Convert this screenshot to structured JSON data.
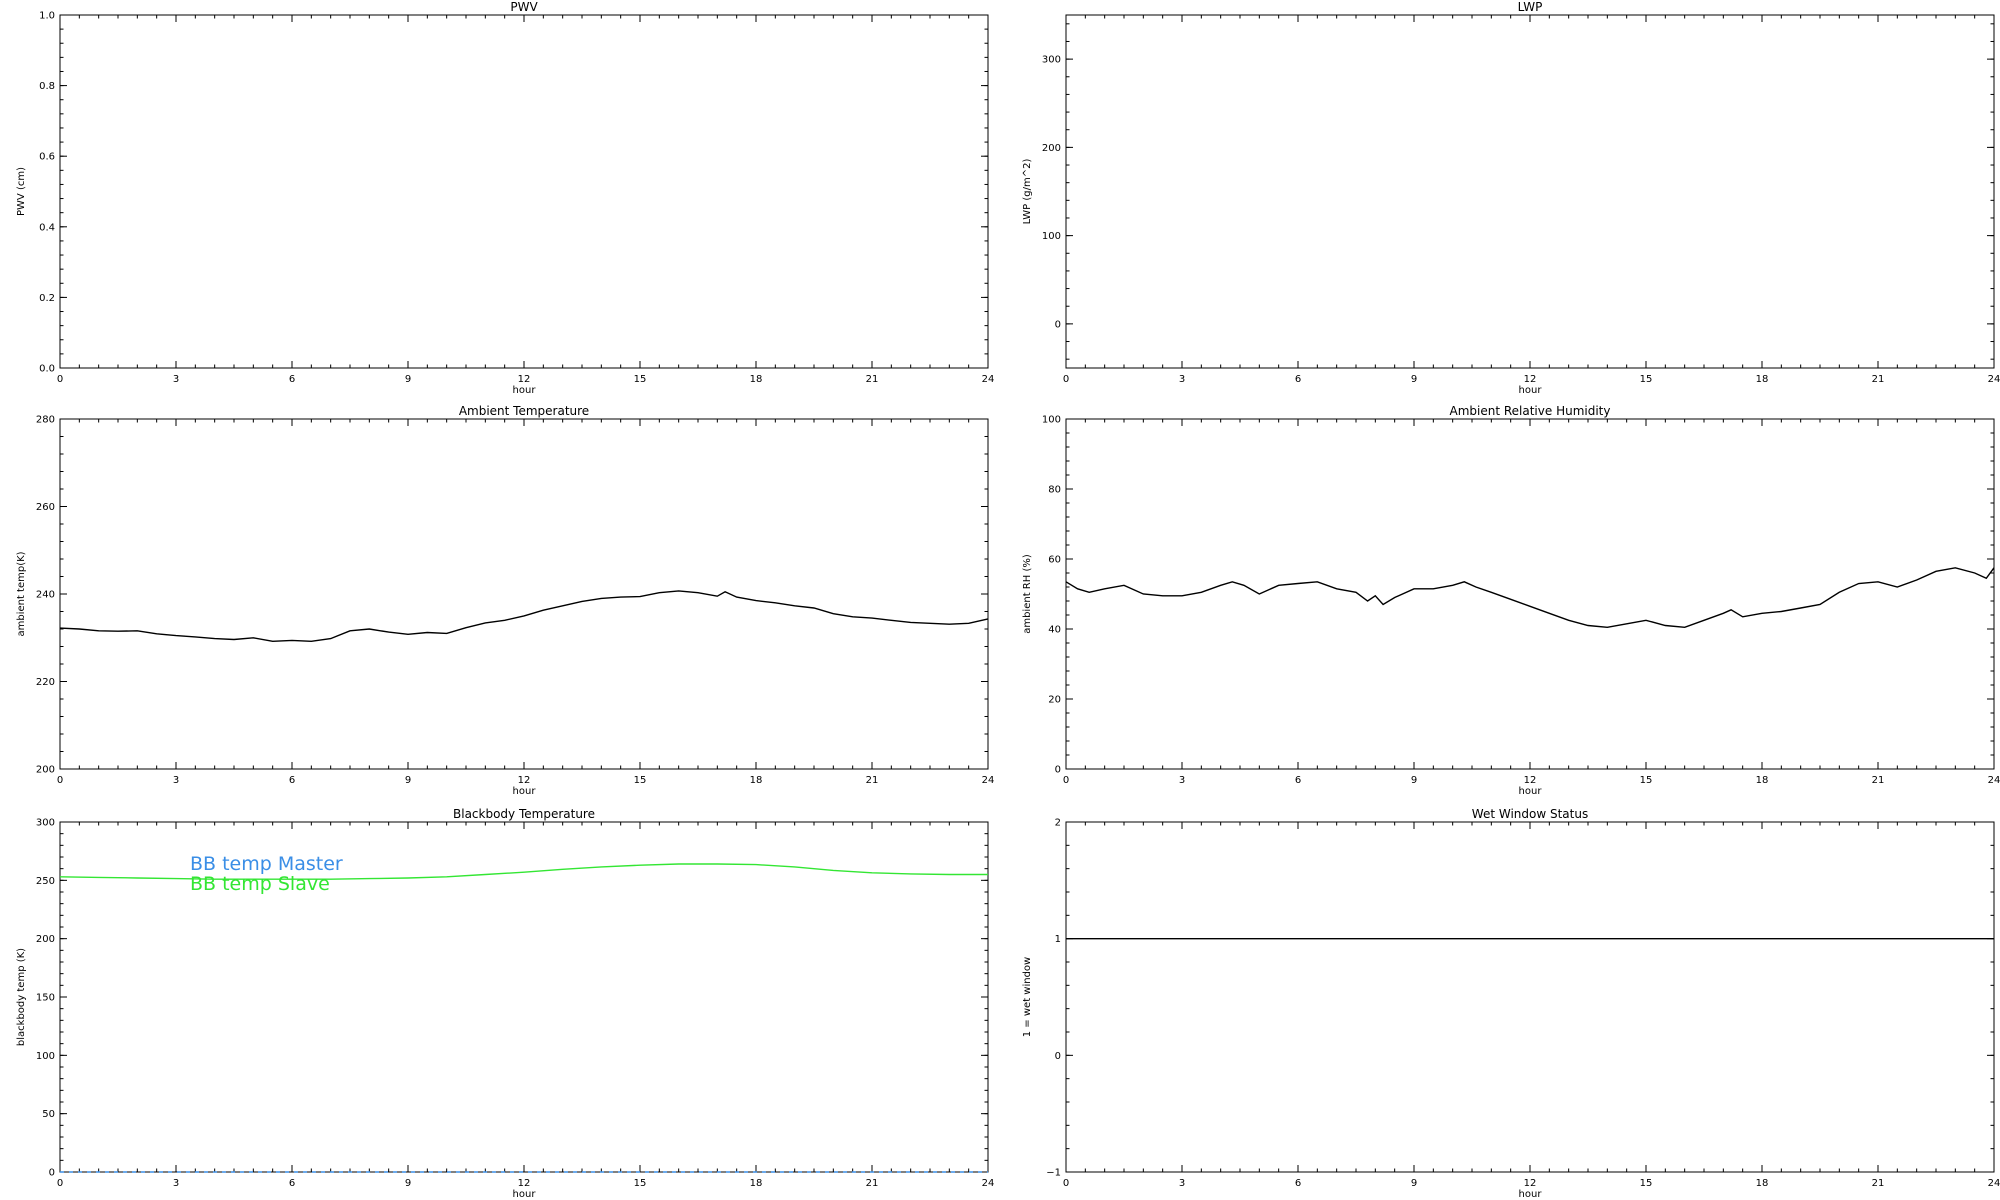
{
  "chart_data": [
    {
      "id": "pwv",
      "type": "line",
      "title": "PWV",
      "xlabel": "hour",
      "ylabel": "PWV (cm)",
      "xlim": [
        0,
        24
      ],
      "ylim": [
        0.0,
        1.0
      ],
      "xticks": [
        "0",
        "3",
        "6",
        "9",
        "12",
        "15",
        "18",
        "21",
        "24"
      ],
      "yticks": [
        "0.0",
        "0.2",
        "0.4",
        "0.6",
        "0.8",
        "1.0"
      ],
      "series": []
    },
    {
      "id": "lwp",
      "type": "line",
      "title": "LWP",
      "xlabel": "hour",
      "ylabel": "LWP (g/m^2)",
      "xlim": [
        0,
        24
      ],
      "ylim": [
        -50,
        350
      ],
      "xticks": [
        "0",
        "3",
        "6",
        "9",
        "12",
        "15",
        "18",
        "21",
        "24"
      ],
      "yticks": [
        "0",
        "100",
        "200",
        "300"
      ],
      "series": []
    },
    {
      "id": "ambient-temperature",
      "type": "line",
      "title": "Ambient Temperature",
      "xlabel": "hour",
      "ylabel": "ambient temp(K)",
      "xlim": [
        0,
        24
      ],
      "ylim": [
        200,
        280
      ],
      "xticks": [
        "0",
        "3",
        "6",
        "9",
        "12",
        "15",
        "18",
        "21",
        "24"
      ],
      "yticks": [
        "200",
        "220",
        "240",
        "260",
        "280"
      ],
      "series": [
        {
          "color": "#000000",
          "x": [
            0,
            0.5,
            1,
            1.5,
            2,
            2.5,
            3,
            3.5,
            4,
            4.5,
            5,
            5.5,
            6,
            6.5,
            7,
            7.5,
            8,
            8.5,
            9,
            9.5,
            10,
            10.5,
            11,
            11.5,
            12,
            12.5,
            13,
            13.5,
            14,
            14.5,
            15,
            15.5,
            16,
            16.5,
            17,
            17.2,
            17.5,
            18,
            18.5,
            19,
            19.5,
            20,
            20.5,
            21,
            21.5,
            22,
            22.5,
            23,
            23.5,
            24
          ],
          "y": [
            232.2,
            232.0,
            231.6,
            231.5,
            231.6,
            230.9,
            230.5,
            230.2,
            229.8,
            229.6,
            230.0,
            229.2,
            229.4,
            229.2,
            229.8,
            231.6,
            232.0,
            231.3,
            230.8,
            231.2,
            231.0,
            232.3,
            233.4,
            234.0,
            235.0,
            236.3,
            237.3,
            238.3,
            239.0,
            239.3,
            239.4,
            240.3,
            240.7,
            240.3,
            239.5,
            240.5,
            239.3,
            238.5,
            238.0,
            237.3,
            236.8,
            235.5,
            234.8,
            234.5,
            234.0,
            233.5,
            233.3,
            233.1,
            233.3,
            234.3
          ]
        }
      ]
    },
    {
      "id": "ambient-relative-humidity",
      "type": "line",
      "title": "Ambient Relative Humidity",
      "xlabel": "hour",
      "ylabel": "ambient RH (%)",
      "xlim": [
        0,
        24
      ],
      "ylim": [
        0,
        100
      ],
      "xticks": [
        "0",
        "3",
        "6",
        "9",
        "12",
        "15",
        "18",
        "21",
        "24"
      ],
      "yticks": [
        "0",
        "20",
        "40",
        "60",
        "80",
        "100"
      ],
      "series": [
        {
          "color": "#000000",
          "x": [
            0,
            0.3,
            0.6,
            1,
            1.5,
            2,
            2.5,
            3,
            3.5,
            4,
            4.3,
            4.6,
            5,
            5.5,
            6,
            6.5,
            7,
            7.5,
            7.8,
            8,
            8.2,
            8.5,
            9,
            9.5,
            10,
            10.3,
            10.6,
            11,
            11.5,
            12,
            12.5,
            13,
            13.5,
            14,
            14.5,
            15,
            15.5,
            16,
            16.5,
            17,
            17.2,
            17.5,
            18,
            18.5,
            19,
            19.5,
            20,
            20.5,
            21,
            21.5,
            22,
            22.5,
            23,
            23.5,
            23.8,
            24
          ],
          "y": [
            53.5,
            51.5,
            50.5,
            51.5,
            52.5,
            50.0,
            49.5,
            49.5,
            50.5,
            52.5,
            53.5,
            52.5,
            50.0,
            52.5,
            53.0,
            53.5,
            51.5,
            50.5,
            48.0,
            49.5,
            47.0,
            49.0,
            51.5,
            51.5,
            52.5,
            53.5,
            52.0,
            50.5,
            48.5,
            46.5,
            44.5,
            42.5,
            41.0,
            40.5,
            41.5,
            42.5,
            41.0,
            40.5,
            42.5,
            44.5,
            45.5,
            43.5,
            44.5,
            45.0,
            46.0,
            47.0,
            50.5,
            53.0,
            53.5,
            52.0,
            54.0,
            56.5,
            57.5,
            56.0,
            54.5,
            57.5
          ]
        }
      ]
    },
    {
      "id": "blackbody-temperature",
      "type": "line",
      "title": "Blackbody Temperature",
      "xlabel": "hour",
      "ylabel": "blackbody temp (K)",
      "xlim": [
        0,
        24
      ],
      "ylim": [
        0,
        300
      ],
      "xticks": [
        "0",
        "3",
        "6",
        "9",
        "12",
        "15",
        "18",
        "21",
        "24"
      ],
      "yticks": [
        "0",
        "50",
        "100",
        "150",
        "200",
        "250",
        "300"
      ],
      "legend_position": "top-left",
      "series": [
        {
          "name": "BB temp Master",
          "color": "#3a8ee6",
          "x": [
            0,
            3,
            6,
            9,
            12,
            15,
            18,
            21,
            24
          ],
          "y": [
            0,
            0,
            0,
            0,
            0,
            0,
            0,
            0,
            0
          ]
        },
        {
          "name": "BB temp Slave",
          "color": "#33e633",
          "x": [
            0,
            1,
            2,
            3,
            4,
            5,
            6,
            7,
            8,
            9,
            10,
            11,
            12,
            13,
            14,
            15,
            16,
            17,
            18,
            19,
            20,
            21,
            22,
            23,
            24
          ],
          "y": [
            253,
            252.5,
            252,
            251.5,
            251,
            251,
            251,
            251,
            251.5,
            252,
            253,
            255,
            257,
            259.5,
            261.5,
            263,
            264,
            264,
            263.5,
            261.5,
            258.5,
            256.5,
            255.5,
            255,
            255
          ]
        }
      ]
    },
    {
      "id": "wet-window-status",
      "type": "line",
      "title": "Wet Window Status",
      "xlabel": "hour",
      "ylabel": "1 = wet window",
      "xlim": [
        0,
        24
      ],
      "ylim": [
        -1,
        2
      ],
      "xticks": [
        "0",
        "3",
        "6",
        "9",
        "12",
        "15",
        "18",
        "21",
        "24"
      ],
      "yticks": [
        "−1",
        "0",
        "1",
        "2"
      ],
      "series": [
        {
          "color": "#000000",
          "x": [
            0,
            24
          ],
          "y": [
            1,
            1
          ]
        }
      ]
    }
  ]
}
